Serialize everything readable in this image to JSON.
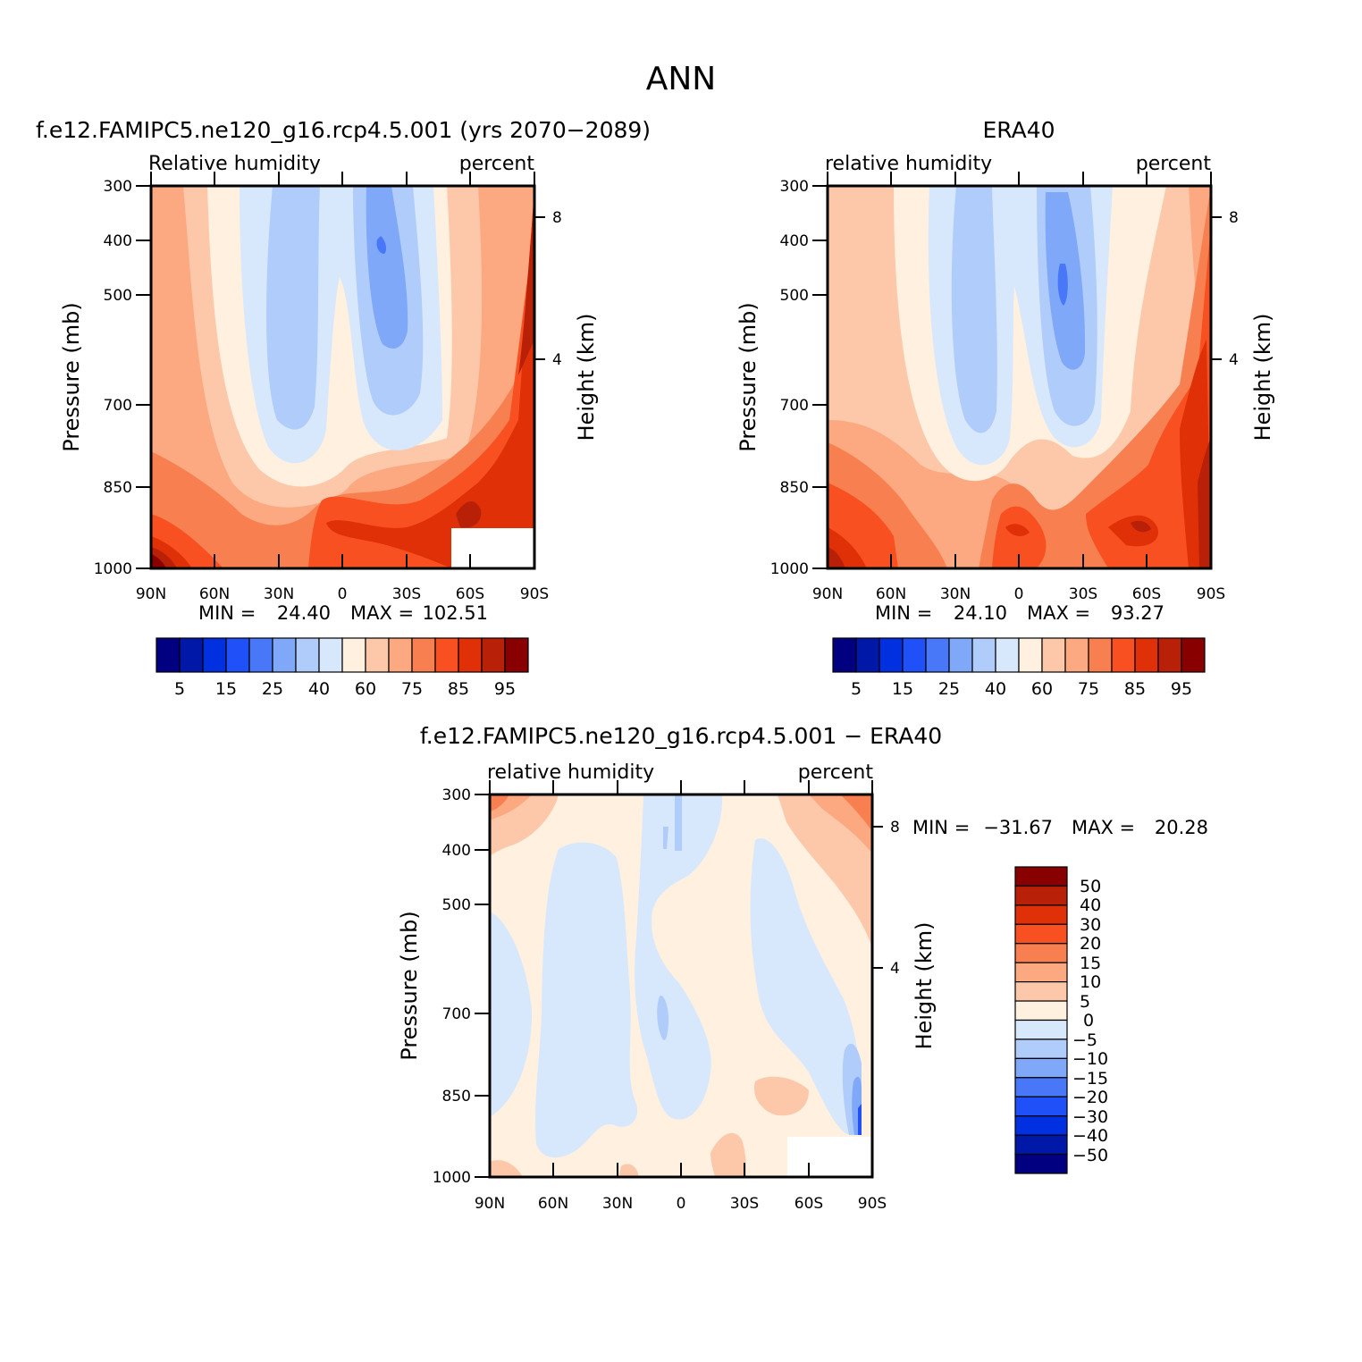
{
  "main_title": "ANN",
  "colors": {
    "rh_levels": [
      "#000080",
      "#0018a8",
      "#0030e0",
      "#2050f8",
      "#4878f8",
      "#80a8f8",
      "#b0ccfa",
      "#d8e8fc",
      "#fff0e0",
      "#fdc8aa",
      "#fca880",
      "#f88050",
      "#f85020",
      "#e03008",
      "#b82008",
      "#880000"
    ],
    "diff_levels": [
      "#000080",
      "#0018a8",
      "#0030e0",
      "#2050f8",
      "#4878f8",
      "#80a8f8",
      "#b0ccfa",
      "#d8e8fc",
      "#fff0e0",
      "#fdc8aa",
      "#fca880",
      "#f88050",
      "#f85020",
      "#e03008",
      "#b82008",
      "#880000"
    ]
  },
  "chart_data": [
    {
      "id": "model",
      "type": "heatmap",
      "title": "f.e12.FAMIPC5.ne120_g16.rcp4.5.001 (yrs 2070−2089)",
      "left_string": "Relative humidity",
      "right_string": "percent",
      "ylabel": "Pressure (mb)",
      "ylabel_right": "Height (km)",
      "x_ticks": [
        "90N",
        "60N",
        "30N",
        "0",
        "30S",
        "60S",
        "90S"
      ],
      "y_ticks": [
        "300",
        "400",
        "500",
        "700",
        "850",
        "1000"
      ],
      "y_ticks_right": [
        "8",
        "4"
      ],
      "min_label": "MIN =",
      "min_value": "24.40",
      "max_label": "MAX =",
      "max_value": "102.51",
      "levels": [
        5,
        10,
        15,
        20,
        25,
        30,
        40,
        50,
        60,
        70,
        75,
        80,
        85,
        90,
        95
      ],
      "colorbar_labels": [
        "5",
        "15",
        "25",
        "40",
        "60",
        "75",
        "85",
        "95"
      ],
      "y_range": [
        1000,
        300
      ],
      "x_range": [
        90,
        -90
      ]
    },
    {
      "id": "obs",
      "type": "heatmap",
      "title": "ERA40",
      "left_string": "relative humidity",
      "right_string": "percent",
      "ylabel": "Pressure (mb)",
      "ylabel_right": "Height (km)",
      "x_ticks": [
        "90N",
        "60N",
        "30N",
        "0",
        "30S",
        "60S",
        "90S"
      ],
      "y_ticks": [
        "300",
        "400",
        "500",
        "700",
        "850",
        "1000"
      ],
      "y_ticks_right": [
        "8",
        "4"
      ],
      "min_label": "MIN =",
      "min_value": "24.10",
      "max_label": "MAX =",
      "max_value": "93.27",
      "levels": [
        5,
        10,
        15,
        20,
        25,
        30,
        40,
        50,
        60,
        70,
        75,
        80,
        85,
        90,
        95
      ],
      "colorbar_labels": [
        "5",
        "15",
        "25",
        "40",
        "60",
        "75",
        "85",
        "95"
      ],
      "y_range": [
        1000,
        300
      ],
      "x_range": [
        90,
        -90
      ]
    },
    {
      "id": "diff",
      "type": "heatmap",
      "title": "f.e12.FAMIPC5.ne120_g16.rcp4.5.001 − ERA40",
      "left_string": "relative humidity",
      "right_string": "percent",
      "ylabel": "Pressure (mb)",
      "ylabel_right": "Height (km)",
      "x_ticks": [
        "90N",
        "60N",
        "30N",
        "0",
        "30S",
        "60S",
        "90S"
      ],
      "y_ticks": [
        "300",
        "400",
        "500",
        "700",
        "850",
        "1000"
      ],
      "y_ticks_right": [
        "8",
        "4"
      ],
      "min_label": "MIN =",
      "min_value": "−31.67",
      "max_label": "MAX =",
      "max_value": "20.28",
      "levels": [
        -50,
        -40,
        -30,
        -20,
        -15,
        -10,
        -5,
        0,
        5,
        10,
        15,
        20,
        30,
        40,
        50
      ],
      "colorbar_labels": [
        "50",
        "40",
        "30",
        "20",
        "15",
        "10",
        "5",
        "0",
        "−5",
        "−10",
        "−15",
        "−20",
        "−30",
        "−40",
        "−50"
      ],
      "y_range": [
        1000,
        300
      ],
      "x_range": [
        90,
        -90
      ]
    }
  ]
}
